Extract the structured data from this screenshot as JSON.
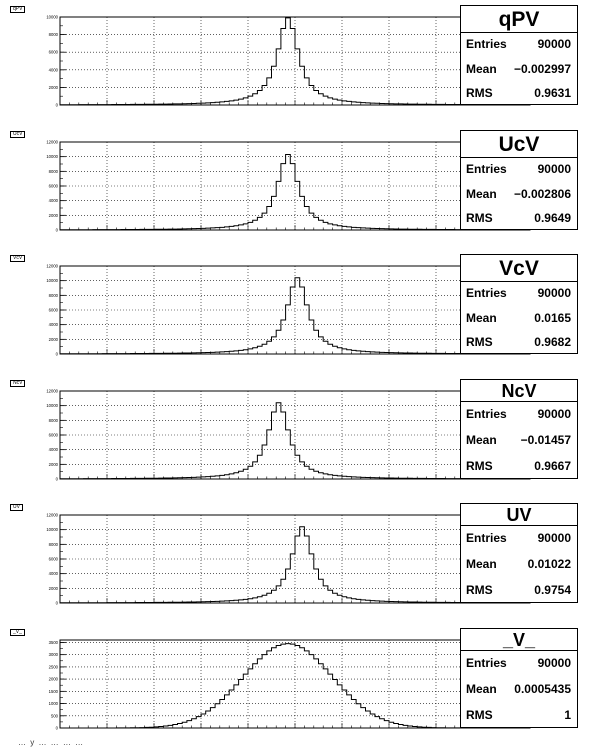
{
  "chart_data": [
    {
      "type": "bar",
      "title": "qPV",
      "pad_label": "qPV",
      "stats": {
        "entries": "90000",
        "mean": "−0.002997",
        "rms": "0.9631"
      },
      "ylim": [
        0,
        10000
      ],
      "yticks": [
        0,
        2000,
        4000,
        6000,
        8000,
        10000
      ],
      "ytick_labels": [
        "0",
        "2000",
        "4000",
        "6000",
        "8000",
        "10000"
      ],
      "peak": 9900,
      "peak_bin": 48,
      "width": 3.4,
      "shape": "lorentz"
    },
    {
      "type": "bar",
      "title": "UcV",
      "pad_label": "UcV",
      "stats": {
        "entries": "90000",
        "mean": "−0.002806",
        "rms": "0.9649"
      },
      "ylim": [
        0,
        12000
      ],
      "yticks": [
        0,
        2000,
        4000,
        6000,
        8000,
        10000,
        12000
      ],
      "ytick_labels": [
        "0",
        "2000",
        "4000",
        "6000",
        "8000",
        "10000",
        "12000"
      ],
      "peak": 10300,
      "peak_bin": 48,
      "width": 3.4,
      "shape": "lorentz"
    },
    {
      "type": "bar",
      "title": "VcV",
      "pad_label": "VcV",
      "stats": {
        "entries": "90000",
        "mean": "0.0165",
        "rms": "0.9682"
      },
      "ylim": [
        0,
        12000
      ],
      "yticks": [
        0,
        2000,
        4000,
        6000,
        8000,
        10000,
        12000
      ],
      "ytick_labels": [
        "0",
        "2000",
        "4000",
        "6000",
        "8000",
        "10000",
        "12000"
      ],
      "peak": 10400,
      "peak_bin": 50,
      "width": 3.4,
      "shape": "lorentz"
    },
    {
      "type": "bar",
      "title": "NcV",
      "pad_label": "NcV",
      "stats": {
        "entries": "90000",
        "mean": "−0.01457",
        "rms": "0.9667"
      },
      "ylim": [
        0,
        12000
      ],
      "yticks": [
        0,
        2000,
        4000,
        6000,
        8000,
        10000,
        12000
      ],
      "ytick_labels": [
        "0",
        "2000",
        "4000",
        "6000",
        "8000",
        "10000",
        "12000"
      ],
      "peak": 10400,
      "peak_bin": 46,
      "width": 3.4,
      "shape": "lorentz"
    },
    {
      "type": "bar",
      "title": "UV",
      "pad_label": "UV",
      "stats": {
        "entries": "90000",
        "mean": "0.01022",
        "rms": "0.9754"
      },
      "ylim": [
        0,
        12000
      ],
      "yticks": [
        0,
        2000,
        4000,
        6000,
        8000,
        10000,
        12000
      ],
      "ytick_labels": [
        "0",
        "2000",
        "4000",
        "6000",
        "8000",
        "10000",
        "12000"
      ],
      "peak": 10400,
      "peak_bin": 51,
      "width": 3.4,
      "shape": "lorentz"
    },
    {
      "type": "bar",
      "title": "_V_",
      "pad_label": "_V_",
      "stats": {
        "entries": "90000",
        "mean": "0.0005435",
        "rms": "1"
      },
      "ylim": [
        0,
        3600
      ],
      "yticks": [
        0,
        500,
        1000,
        1500,
        2000,
        2500,
        3000,
        3500
      ],
      "ytick_labels": [
        "0",
        "500",
        "1000",
        "1500",
        "2000",
        "2500",
        "3000",
        "3500"
      ],
      "peak": 3450,
      "peak_bin": 48,
      "width": 9.5,
      "shape": "gauss"
    }
  ],
  "labels": {
    "entries": "Entries",
    "mean": "Mean",
    "rms": "RMS"
  },
  "footer": "… y … … … …"
}
